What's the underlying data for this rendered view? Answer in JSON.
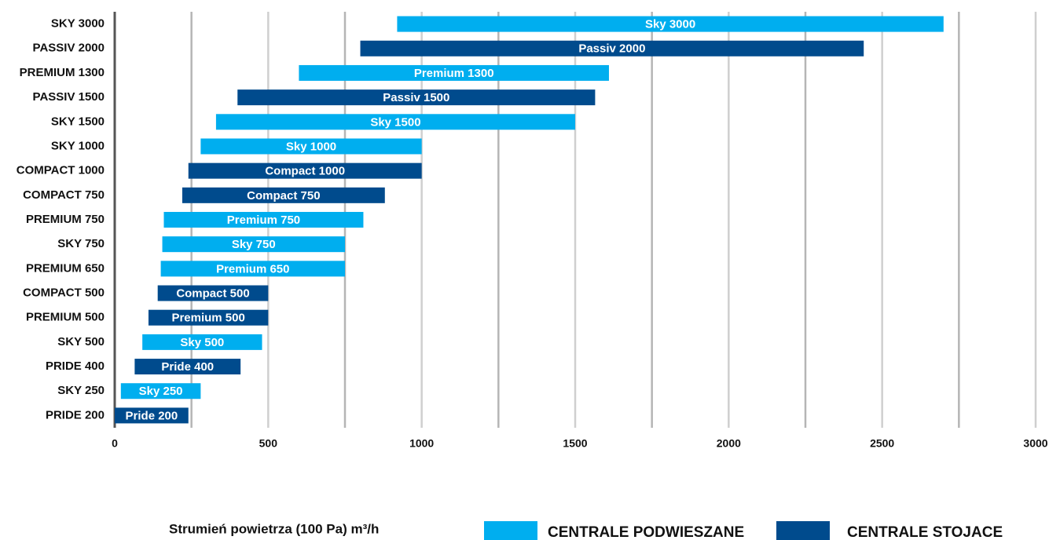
{
  "chart_data": {
    "type": "range_bar",
    "categories": [
      "SKY 3000",
      "PASSIV 2000",
      "PREMIUM 1300",
      "PASSIV 1500",
      "SKY 1500",
      "SKY 1000",
      "COMPACT 1000",
      "COMPACT 750",
      "PREMIUM 750",
      "SKY 750",
      "PREMIUM 650",
      "COMPACT 500",
      "PREMIUM 500",
      "SKY 500",
      "PRIDE 400",
      "SKY 250",
      "PRIDE 200"
    ],
    "series": [
      {
        "name": "CENTRALE PODWIESZANE",
        "color": "#00aeef",
        "values": [
          [
            920,
            2700
          ],
          null,
          [
            600,
            1610
          ],
          null,
          [
            330,
            1500
          ],
          [
            280,
            1000
          ],
          null,
          null,
          [
            160,
            810
          ],
          [
            155,
            750
          ],
          [
            150,
            750
          ],
          null,
          null,
          [
            90,
            480
          ],
          null,
          [
            20,
            280
          ],
          null
        ],
        "bar_labels": [
          "Sky 3000",
          null,
          "Premium 1300",
          null,
          "Sky 1500",
          "Sky 1000",
          null,
          null,
          "Premium 750",
          "Sky 750",
          "Premium 650",
          null,
          null,
          "Sky 500",
          null,
          "Sky 250",
          null
        ]
      },
      {
        "name": "CENTRALE STOJACE",
        "color": "#004b8d",
        "values": [
          null,
          [
            800,
            2440
          ],
          null,
          [
            400,
            1565
          ],
          null,
          null,
          [
            240,
            1000
          ],
          [
            220,
            880
          ],
          null,
          null,
          null,
          [
            140,
            500
          ],
          [
            110,
            500
          ],
          null,
          [
            65,
            410
          ],
          null,
          [
            0,
            240
          ]
        ],
        "bar_labels": [
          null,
          "Passiv 2000",
          null,
          "Passiv 1500",
          null,
          null,
          "Compact 1000",
          "Compact 750",
          null,
          null,
          null,
          "Compact 500",
          "Premium 500",
          null,
          "Pride 400",
          null,
          "Pride 200"
        ]
      }
    ],
    "xlabel": "Strumień powietrza (100 Pa) m³/h",
    "xlim": [
      0,
      3000
    ],
    "xticks": [
      0,
      500,
      1000,
      1500,
      2000,
      2500,
      3000
    ],
    "minor_xticks": [
      250,
      750,
      1250,
      1750,
      2250,
      2750
    ],
    "grid": true
  }
}
